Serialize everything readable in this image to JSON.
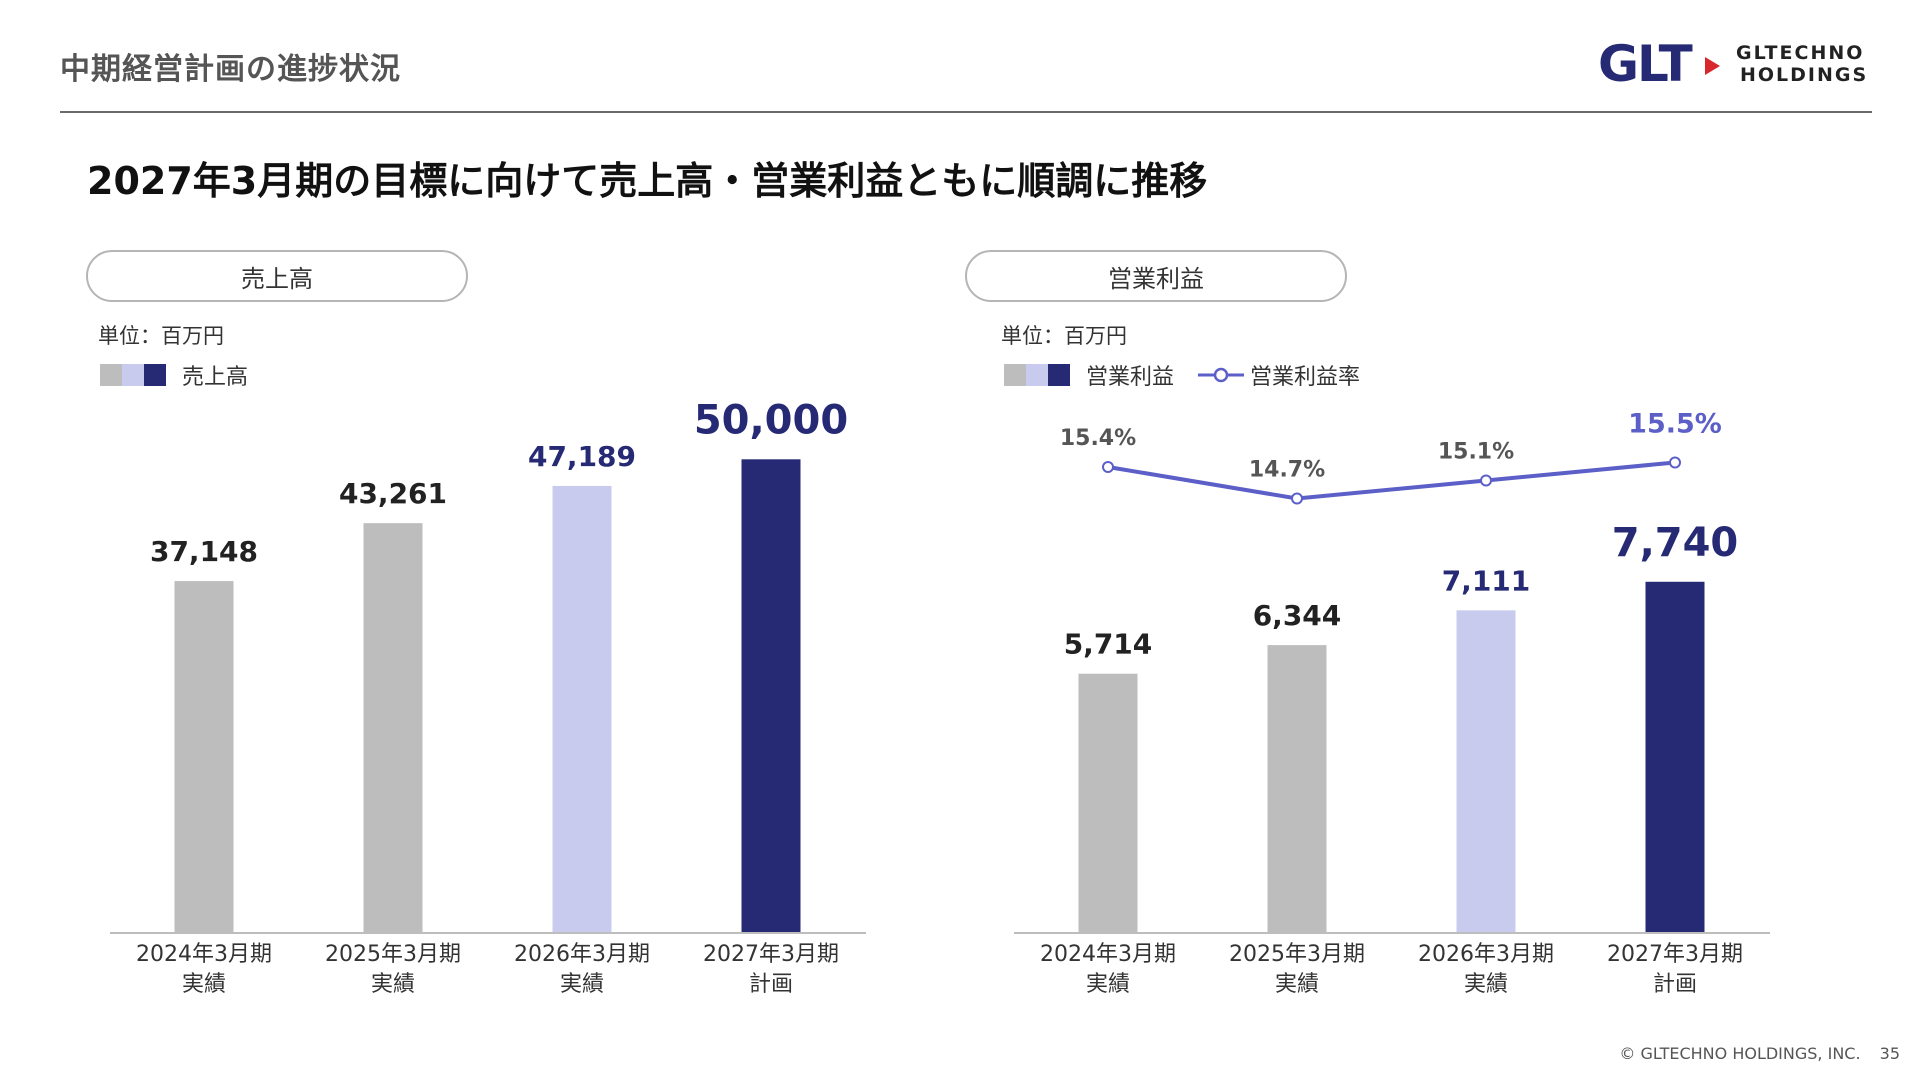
{
  "header": {
    "title": "中期経営計画の進捗状況"
  },
  "logo": {
    "mark": "GLT",
    "line1": "GLTECHNO",
    "line2": "HOLDINGS"
  },
  "headline": "2027年3月期の目標に向けて売上高・営業利益ともに順調に推移",
  "colors": {
    "past": "#bdbdbd",
    "recent": "#c9cbee",
    "plan": "#262a74",
    "rate_line": "#5b5fc7",
    "text_dark": "#222222"
  },
  "left_panel": {
    "pill": "売上高",
    "unit": "単位：百万円",
    "legend_label": "売上高"
  },
  "right_panel": {
    "pill": "営業利益",
    "unit": "単位：百万円",
    "legend_label": "営業利益",
    "legend_rate_label": "営業利益率"
  },
  "chart_data": [
    {
      "type": "bar",
      "categories": [
        [
          "2024年3月期",
          "実績"
        ],
        [
          "2025年3月期",
          "実績"
        ],
        [
          "2026年3月期",
          "実績"
        ],
        [
          "2027年3月期",
          "計画"
        ]
      ],
      "series": [
        {
          "name": "売上高",
          "values": [
            37148,
            43261,
            47189,
            50000
          ]
        }
      ],
      "data_labels": [
        "37,148",
        "43,261",
        "47,189",
        "50,000"
      ],
      "title": "売上高",
      "ylim": [
        0,
        57000
      ]
    },
    {
      "type": "bar",
      "categories": [
        [
          "2024年3月期",
          "実績"
        ],
        [
          "2025年3月期",
          "実績"
        ],
        [
          "2026年3月期",
          "実績"
        ],
        [
          "2027年3月期",
          "計画"
        ]
      ],
      "series": [
        {
          "name": "営業利益",
          "values": [
            5714,
            6344,
            7111,
            7740
          ]
        },
        {
          "name": "営業利益率",
          "type": "line",
          "values": [
            15.4,
            14.7,
            15.1,
            15.5
          ]
        }
      ],
      "data_labels": [
        "5,714",
        "6,344",
        "7,111",
        "7,740"
      ],
      "rate_labels": [
        "15.4%",
        "14.7%",
        "15.1%",
        "15.5%"
      ],
      "title": "営業利益",
      "ylim": [
        0,
        11900
      ]
    }
  ],
  "footer": {
    "copyright": "© GLTECHNO HOLDINGS, INC.",
    "page": "35"
  }
}
